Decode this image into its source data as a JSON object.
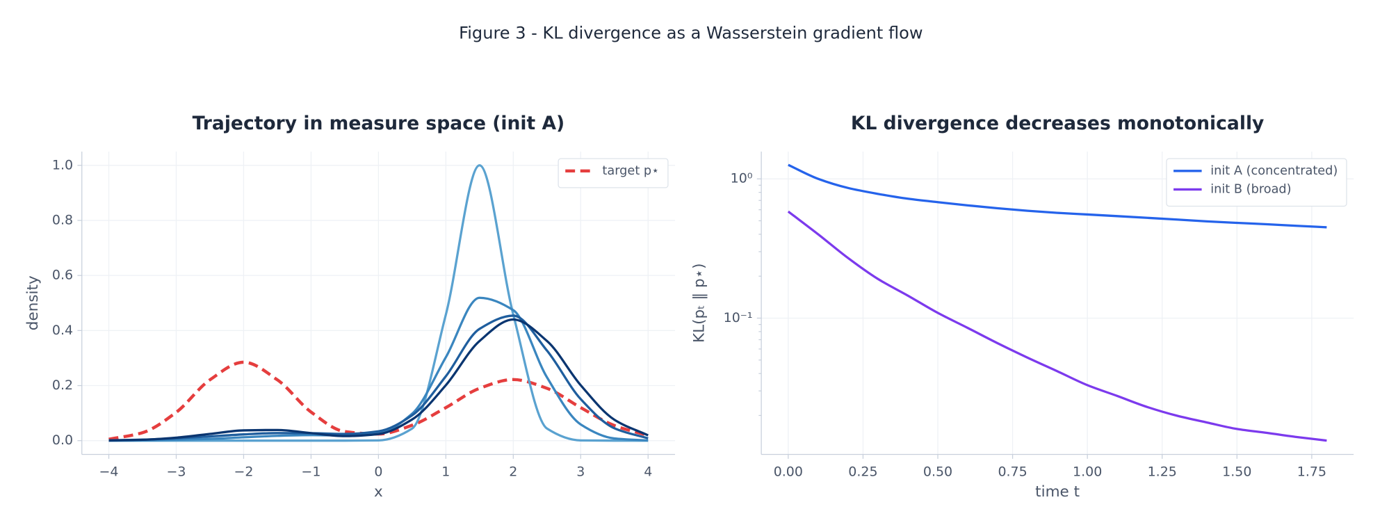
{
  "title": "Figure 3 - KL divergence as a Wasserstein gradient flow",
  "chart_data": [
    {
      "type": "line",
      "title": "Trajectory in measure space (init A)",
      "xlabel": "x",
      "ylabel": "density",
      "x": [
        -4,
        -3.5,
        -3,
        -2.5,
        -2,
        -1.5,
        -1,
        -0.5,
        0,
        0.5,
        1,
        1.5,
        2,
        2.5,
        3,
        3.5,
        4
      ],
      "series": [
        {
          "name": "target p⋆",
          "color": "#e53e3e",
          "dashed": true,
          "values": [
            0.005,
            0.029,
            0.103,
            0.221,
            0.285,
            0.221,
            0.104,
            0.033,
            0.024,
            0.056,
            0.12,
            0.19,
            0.222,
            0.19,
            0.12,
            0.055,
            0.019
          ]
        },
        {
          "color": "#5aa2d0",
          "values": [
            0,
            0,
            0,
            0,
            0,
            0,
            0,
            0,
            0.0009,
            0.044,
            0.458,
            1,
            0.458,
            0.044,
            0.0009,
            0,
            0
          ]
        },
        {
          "color": "#3a86bf",
          "values": [
            0,
            0.001,
            0.003,
            0.0065,
            0.0121,
            0.0176,
            0.02,
            0.019,
            0.027,
            0.098,
            0.303,
            0.519,
            0.474,
            0.23,
            0.059,
            0.008,
            0.0006
          ]
        },
        {
          "color": "#1f5e9e",
          "values": [
            0.0013,
            0.0037,
            0.0084,
            0.0154,
            0.0228,
            0.0275,
            0.027,
            0.0244,
            0.034,
            0.092,
            0.234,
            0.406,
            0.454,
            0.327,
            0.151,
            0.045,
            0.0084
          ]
        },
        {
          "color": "#0a3570",
          "values": [
            0.0007,
            0.0033,
            0.0109,
            0.0245,
            0.0373,
            0.0388,
            0.0274,
            0.0165,
            0.024,
            0.077,
            0.2015,
            0.362,
            0.44,
            0.362,
            0.2015,
            0.076,
            0.0193
          ]
        }
      ],
      "xlim": [
        -4.4,
        4.4
      ],
      "ylim": [
        -0.05,
        1.05
      ],
      "xticks": [
        {
          "value": -4,
          "label": "−4"
        },
        {
          "value": -3,
          "label": "−3"
        },
        {
          "value": -2,
          "label": "−2"
        },
        {
          "value": -1,
          "label": "−1"
        },
        0,
        1,
        2,
        3,
        4
      ],
      "yticks": [
        {
          "value": 0,
          "label": "0.0"
        },
        0.2,
        0.4,
        0.6,
        0.8,
        {
          "value": 1,
          "label": "1.0"
        }
      ],
      "grid": true,
      "legend": "upper right"
    },
    {
      "type": "line",
      "title": "KL divergence decreases monotonically",
      "xlabel": "time t",
      "ylabel": "KL(pₜ ‖ p⋆)",
      "x": [
        0,
        0.1,
        0.2,
        0.3,
        0.4,
        0.5,
        0.6,
        0.7,
        0.8,
        0.9,
        1,
        1.1,
        1.2,
        1.3,
        1.4,
        1.5,
        1.6,
        1.7,
        1.8
      ],
      "series": [
        {
          "name": "init A (concentrated)",
          "color": "#2563eb",
          "values": [
            1.26,
            1.0,
            0.86,
            0.78,
            0.72,
            0.68,
            0.645,
            0.615,
            0.59,
            0.57,
            0.555,
            0.54,
            0.525,
            0.51,
            0.495,
            0.483,
            0.472,
            0.46,
            0.449
          ]
        },
        {
          "name": "init B (broad)",
          "color": "#7c3aed",
          "values": [
            0.583,
            0.4,
            0.27,
            0.191,
            0.145,
            0.109,
            0.085,
            0.066,
            0.052,
            0.0415,
            0.033,
            0.0276,
            0.023,
            0.0199,
            0.0178,
            0.016,
            0.015,
            0.014,
            0.0132
          ]
        }
      ],
      "xlim": [
        -0.09,
        1.89
      ],
      "ylim": [
        0.0105,
        1.57
      ],
      "yscale": "log",
      "xticks": [
        {
          "value": 0,
          "label": "0.00"
        },
        0.25,
        {
          "value": 0.5,
          "label": "0.50"
        },
        0.75,
        {
          "value": 1,
          "label": "1.00"
        },
        1.25,
        {
          "value": 1.5,
          "label": "1.50"
        },
        1.75
      ],
      "yticks": [
        {
          "value": 0.1,
          "label": "10⁻¹"
        },
        {
          "value": 1,
          "label": "10⁰"
        }
      ],
      "grid": true,
      "legend": "upper right"
    }
  ]
}
